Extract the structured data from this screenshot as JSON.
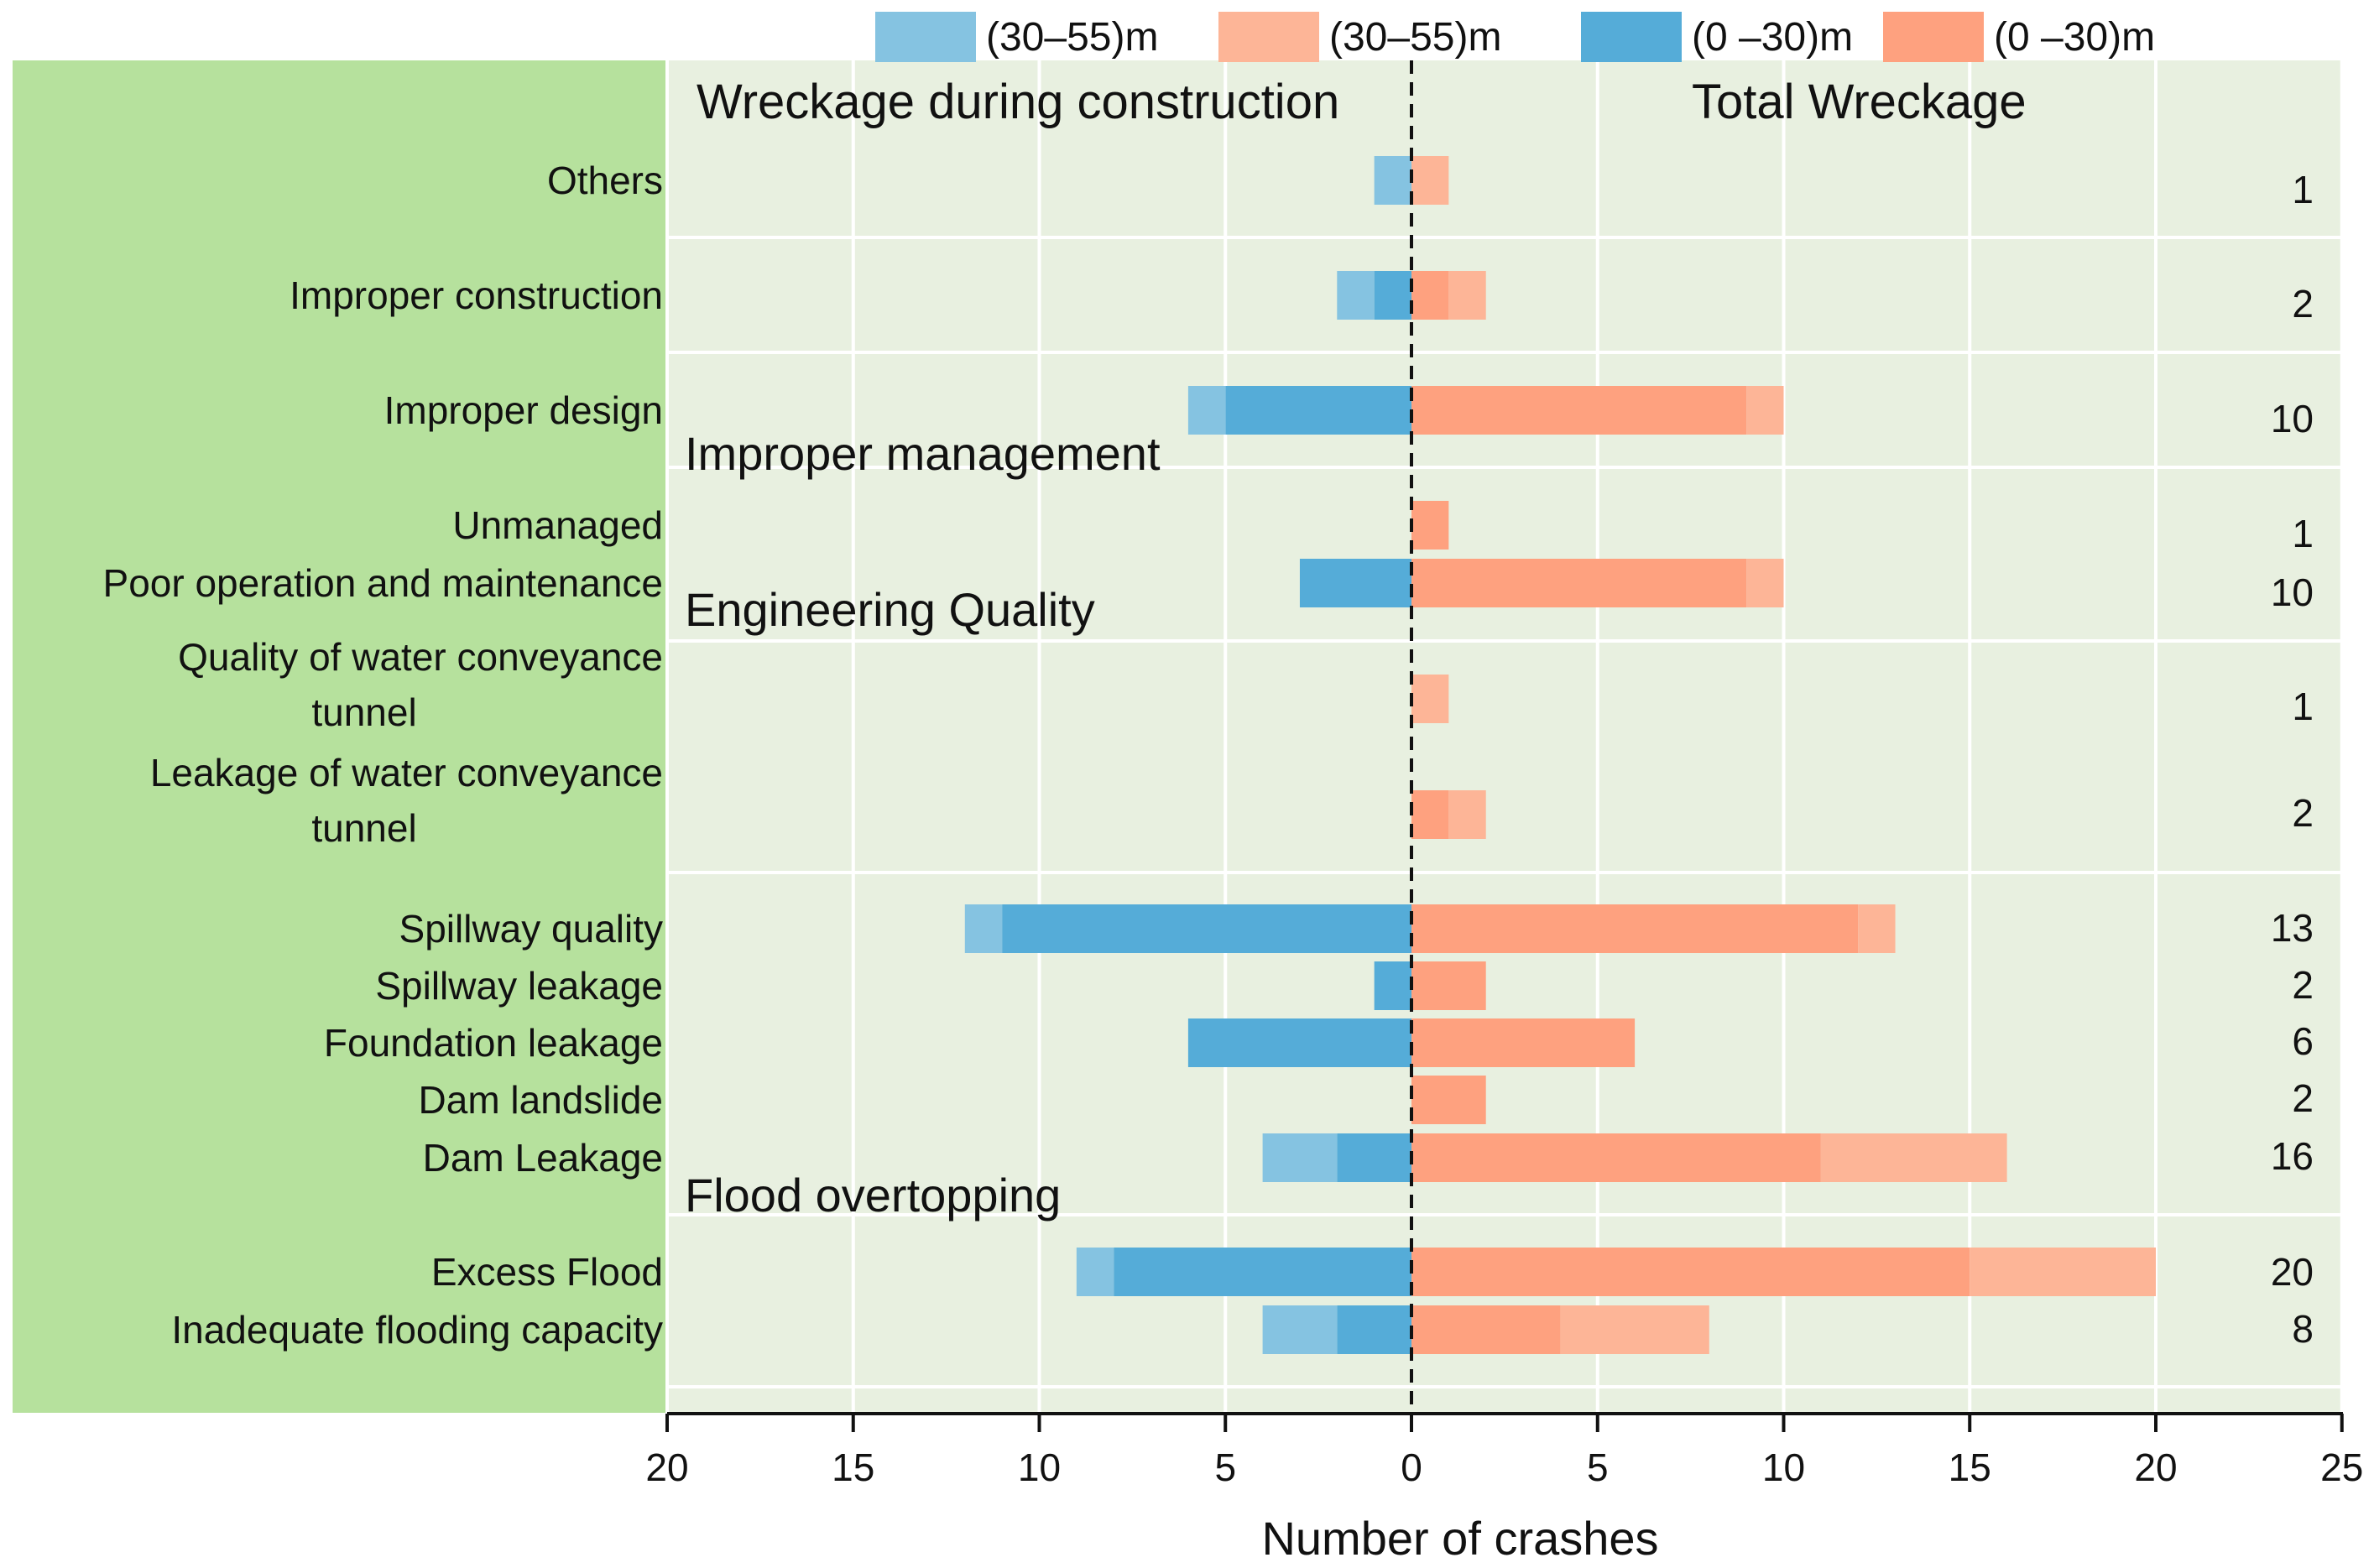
{
  "chart_data": {
    "type": "bar",
    "orientation": "horizontal-diverging",
    "xlabel": "Number of crashes",
    "left_panel_title": "Wreckage during construction",
    "right_panel_title": "Total Wreckage",
    "xlim": [
      -20,
      25
    ],
    "x_ticks": [
      -20,
      -15,
      -10,
      -5,
      0,
      5,
      10,
      15,
      20,
      25
    ],
    "x_tick_labels": [
      "20",
      "15",
      "10",
      "5",
      "0",
      "5",
      "10",
      "15",
      "20",
      "25"
    ],
    "grid": true,
    "legend_position": "top",
    "legend": [
      {
        "label": "(30–55)m",
        "color": "#85c3e1"
      },
      {
        "label": "(30–55)m",
        "color": "#fdb597"
      },
      {
        "label": "(0 –30)m",
        "color": "#55acd8"
      },
      {
        "label": "(0 –30)m",
        "color": "#fea17f"
      }
    ],
    "colors": {
      "construction_30_55": "#85c3e1",
      "construction_0_30": "#55acd8",
      "total_30_55": "#fdb597",
      "total_0_30": "#fea17f",
      "label_panel": "#b6e19d",
      "plot_background": "#e8f0e0"
    },
    "section_headers": [
      {
        "label": "Improper management",
        "before": "Unmanaged"
      },
      {
        "label": "Engineering Quality",
        "before": "Quality of water conveyance tunnel"
      },
      {
        "label": "Flood overtopping",
        "before": "Excess Flood"
      }
    ],
    "categories": [
      {
        "label_lines": [
          "Others"
        ],
        "construction_0_30": 0,
        "construction_30_55": 1,
        "total_0_30": 0,
        "total_30_55": 1,
        "total_label": "1"
      },
      {
        "label_lines": [
          "Improper construction"
        ],
        "construction_0_30": 1,
        "construction_30_55": 1,
        "total_0_30": 1,
        "total_30_55": 1,
        "total_label": "2"
      },
      {
        "label_lines": [
          "Improper design"
        ],
        "construction_0_30": 5,
        "construction_30_55": 1,
        "total_0_30": 9,
        "total_30_55": 1,
        "total_label": "10"
      },
      {
        "label_lines": [
          "Unmanaged"
        ],
        "construction_0_30": 0,
        "construction_30_55": 0,
        "total_0_30": 1,
        "total_30_55": 0,
        "total_label": "1"
      },
      {
        "label_lines": [
          "Poor operation and maintenance"
        ],
        "construction_0_30": 3,
        "construction_30_55": 0,
        "total_0_30": 9,
        "total_30_55": 1,
        "total_label": "10"
      },
      {
        "label_lines": [
          "Quality of water conveyance",
          "tunnel"
        ],
        "construction_0_30": 0,
        "construction_30_55": 0,
        "total_0_30": 0,
        "total_30_55": 1,
        "total_label": "1"
      },
      {
        "label_lines": [
          "Leakage of water conveyance",
          "tunnel"
        ],
        "construction_0_30": 0,
        "construction_30_55": 0,
        "total_0_30": 1,
        "total_30_55": 1,
        "total_label": "2"
      },
      {
        "label_lines": [
          "Spillway quality"
        ],
        "construction_0_30": 11,
        "construction_30_55": 1,
        "total_0_30": 12,
        "total_30_55": 1,
        "total_label": "13"
      },
      {
        "label_lines": [
          "Spillway leakage"
        ],
        "construction_0_30": 1,
        "construction_30_55": 0,
        "total_0_30": 2,
        "total_30_55": 0,
        "total_label": "2"
      },
      {
        "label_lines": [
          "Foundation leakage"
        ],
        "construction_0_30": 6,
        "construction_30_55": 0,
        "total_0_30": 6,
        "total_30_55": 0,
        "total_label": "6"
      },
      {
        "label_lines": [
          "Dam landslide"
        ],
        "construction_0_30": 0,
        "construction_30_55": 0,
        "total_0_30": 2,
        "total_30_55": 0,
        "total_label": "2"
      },
      {
        "label_lines": [
          "Dam Leakage"
        ],
        "construction_0_30": 2,
        "construction_30_55": 2,
        "total_0_30": 11,
        "total_30_55": 5,
        "total_label": "16"
      },
      {
        "label_lines": [
          "Excess Flood"
        ],
        "construction_0_30": 8,
        "construction_30_55": 1,
        "total_0_30": 15,
        "total_30_55": 5,
        "total_label": "20"
      },
      {
        "label_lines": [
          "Inadequate flooding capacity"
        ],
        "construction_0_30": 2,
        "construction_30_55": 2,
        "total_0_30": 4,
        "total_30_55": 4,
        "total_label": "8"
      }
    ]
  }
}
